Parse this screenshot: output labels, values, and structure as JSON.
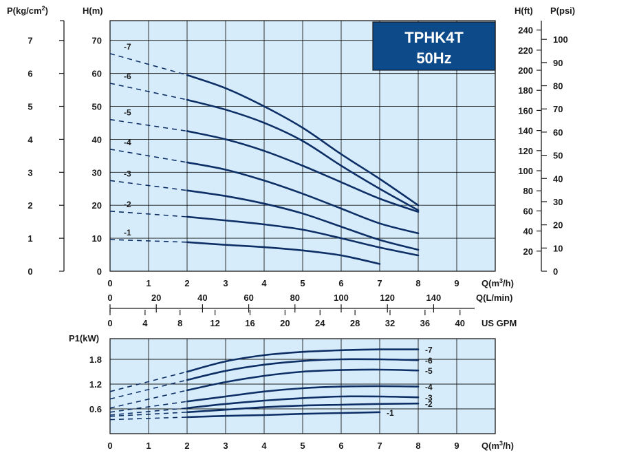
{
  "colors": {
    "plot_background": "#d6ecfb",
    "curve": "#0d2f66",
    "title_box": "#0d4a8a",
    "title_text": "#ffffff"
  },
  "title_box": {
    "line1": "TPHK4T",
    "line2": "50Hz"
  },
  "chart_data": [
    {
      "type": "line",
      "name_hint": "head",
      "xlabel": "Q(m³/h)",
      "ylabel": "H(m)",
      "xlim": [
        0,
        10
      ],
      "ylim": [
        0,
        76
      ],
      "x_ticks": [
        0,
        1,
        2,
        3,
        4,
        5,
        6,
        7,
        8,
        9
      ],
      "y_ticks": [
        0,
        10,
        20,
        30,
        40,
        50,
        60,
        70
      ],
      "grid": true,
      "secondary_axes": {
        "left_pressure": {
          "label": "P(kg/cm2)",
          "label_sup": "2",
          "label_base": "P(kg/cm",
          "label_end": ")",
          "ticks": [
            0,
            1,
            2,
            3,
            4,
            5,
            6,
            7
          ]
        },
        "right_feet": {
          "label": "H(ft)",
          "ticks": [
            20,
            40,
            60,
            80,
            100,
            120,
            140,
            160,
            180,
            200,
            220,
            240
          ]
        },
        "right_psi": {
          "label": "P(psi)",
          "ticks": [
            0,
            10,
            20,
            30,
            40,
            50,
            60,
            70,
            80,
            90,
            100
          ]
        },
        "lmin": {
          "label": "Q(L/min)",
          "ticks": [
            0,
            20,
            40,
            60,
            80,
            100,
            120,
            140
          ]
        },
        "usgpm": {
          "label": "US GPM",
          "ticks": [
            0,
            4,
            8,
            12,
            16,
            20,
            24,
            28,
            32,
            36,
            40
          ]
        }
      },
      "series": [
        {
          "name": "-1",
          "dashed": [
            [
              0,
              9.6
            ],
            [
              2,
              8.8
            ]
          ],
          "values": [
            [
              2,
              8.8
            ],
            [
              3,
              8.0
            ],
            [
              4,
              7.3
            ],
            [
              5,
              6.3
            ],
            [
              6,
              4.8
            ],
            [
              7,
              2.2
            ]
          ]
        },
        {
          "name": "-2",
          "dashed": [
            [
              0,
              18.2
            ],
            [
              2,
              16.5
            ]
          ],
          "values": [
            [
              2,
              16.5
            ],
            [
              3,
              15.4
            ],
            [
              4,
              14.2
            ],
            [
              5,
              12.6
            ],
            [
              6,
              10.0
            ],
            [
              7,
              7.2
            ],
            [
              8,
              4.8
            ]
          ]
        },
        {
          "name": "-3",
          "dashed": [
            [
              0,
              27.5
            ],
            [
              2,
              24.5
            ]
          ],
          "values": [
            [
              2,
              24.5
            ],
            [
              3,
              22.8
            ],
            [
              4,
              20.5
            ],
            [
              5,
              17.5
            ],
            [
              6,
              13.5
            ],
            [
              7,
              9.5
            ],
            [
              8,
              6.5
            ]
          ]
        },
        {
          "name": "-4",
          "dashed": [
            [
              0,
              37.0
            ],
            [
              2,
              33.0
            ]
          ],
          "values": [
            [
              2,
              33.0
            ],
            [
              3,
              30.8
            ],
            [
              4,
              27.5
            ],
            [
              5,
              23.5
            ],
            [
              6,
              19.0
            ],
            [
              7,
              14.5
            ],
            [
              8,
              11.5
            ]
          ]
        },
        {
          "name": "-5",
          "dashed": [
            [
              0,
              46.0
            ],
            [
              2,
              42.5
            ]
          ],
          "values": [
            [
              2,
              42.5
            ],
            [
              3,
              40.0
            ],
            [
              4,
              36.5
            ],
            [
              5,
              32.0
            ],
            [
              6,
              27.0
            ],
            [
              7,
              22.0
            ],
            [
              8,
              18.0
            ]
          ]
        },
        {
          "name": "-6",
          "dashed": [
            [
              0,
              57.0
            ],
            [
              2,
              52.0
            ]
          ],
          "values": [
            [
              2,
              52.0
            ],
            [
              3,
              49.0
            ],
            [
              4,
              45.0
            ],
            [
              5,
              39.5
            ],
            [
              6,
              32.0
            ],
            [
              7,
              25.0
            ],
            [
              8,
              18.5
            ]
          ]
        },
        {
          "name": "-7",
          "dashed": [
            [
              0,
              66.0
            ],
            [
              2,
              59.5
            ]
          ],
          "values": [
            [
              2,
              59.5
            ],
            [
              3,
              55.5
            ],
            [
              4,
              50.0
            ],
            [
              5,
              43.5
            ],
            [
              6,
              35.5
            ],
            [
              7,
              28.0
            ],
            [
              8,
              20.0
            ]
          ]
        }
      ]
    },
    {
      "type": "line",
      "name_hint": "power",
      "xlabel": "Q(m³/h)",
      "ylabel": "P1(kW)",
      "xlim": [
        0,
        10
      ],
      "ylim": [
        0,
        2.3
      ],
      "x_ticks": [
        0,
        1,
        2,
        3,
        4,
        5,
        6,
        7,
        8,
        9
      ],
      "y_ticks": [
        0.6,
        1.2,
        1.8
      ],
      "grid": true,
      "series": [
        {
          "name": "-1",
          "dashed": [
            [
              0,
              0.34
            ],
            [
              2,
              0.4
            ]
          ],
          "values": [
            [
              2,
              0.4
            ],
            [
              3,
              0.43
            ],
            [
              4,
              0.45
            ],
            [
              5,
              0.48
            ],
            [
              6,
              0.5
            ],
            [
              7,
              0.52
            ]
          ]
        },
        {
          "name": "-2",
          "dashed": [
            [
              0,
              0.42
            ],
            [
              2,
              0.52
            ]
          ],
          "values": [
            [
              2,
              0.52
            ],
            [
              3,
              0.58
            ],
            [
              4,
              0.64
            ],
            [
              5,
              0.68
            ],
            [
              6,
              0.7
            ],
            [
              7,
              0.72
            ],
            [
              8,
              0.73
            ]
          ]
        },
        {
          "name": "-3",
          "dashed": [
            [
              0,
              0.45
            ],
            [
              2,
              0.62
            ]
          ],
          "values": [
            [
              2,
              0.62
            ],
            [
              3,
              0.72
            ],
            [
              4,
              0.8
            ],
            [
              5,
              0.86
            ],
            [
              6,
              0.9
            ],
            [
              7,
              0.9
            ],
            [
              8,
              0.88
            ]
          ]
        },
        {
          "name": "-4",
          "dashed": [
            [
              0,
              0.52
            ],
            [
              2,
              0.78
            ]
          ],
          "values": [
            [
              2,
              0.78
            ],
            [
              3,
              0.9
            ],
            [
              4,
              1.02
            ],
            [
              5,
              1.1
            ],
            [
              6,
              1.14
            ],
            [
              7,
              1.15
            ],
            [
              8,
              1.14
            ]
          ]
        },
        {
          "name": "-5",
          "dashed": [
            [
              0,
              0.62
            ],
            [
              2,
              1.05
            ]
          ],
          "values": [
            [
              2,
              1.05
            ],
            [
              3,
              1.25
            ],
            [
              4,
              1.4
            ],
            [
              5,
              1.5
            ],
            [
              6,
              1.54
            ],
            [
              7,
              1.55
            ],
            [
              8,
              1.53
            ]
          ]
        },
        {
          "name": "-6",
          "dashed": [
            [
              0,
              0.84
            ],
            [
              2,
              1.3
            ]
          ],
          "values": [
            [
              2,
              1.3
            ],
            [
              3,
              1.52
            ],
            [
              4,
              1.67
            ],
            [
              5,
              1.76
            ],
            [
              6,
              1.8
            ],
            [
              7,
              1.8
            ],
            [
              8,
              1.78
            ]
          ]
        },
        {
          "name": "-7",
          "dashed": [
            [
              0,
              1.02
            ],
            [
              2,
              1.5
            ]
          ],
          "values": [
            [
              2,
              1.5
            ],
            [
              3,
              1.75
            ],
            [
              4,
              1.9
            ],
            [
              5,
              1.98
            ],
            [
              6,
              2.02
            ],
            [
              7,
              2.04
            ],
            [
              8,
              2.04
            ]
          ]
        }
      ]
    }
  ]
}
